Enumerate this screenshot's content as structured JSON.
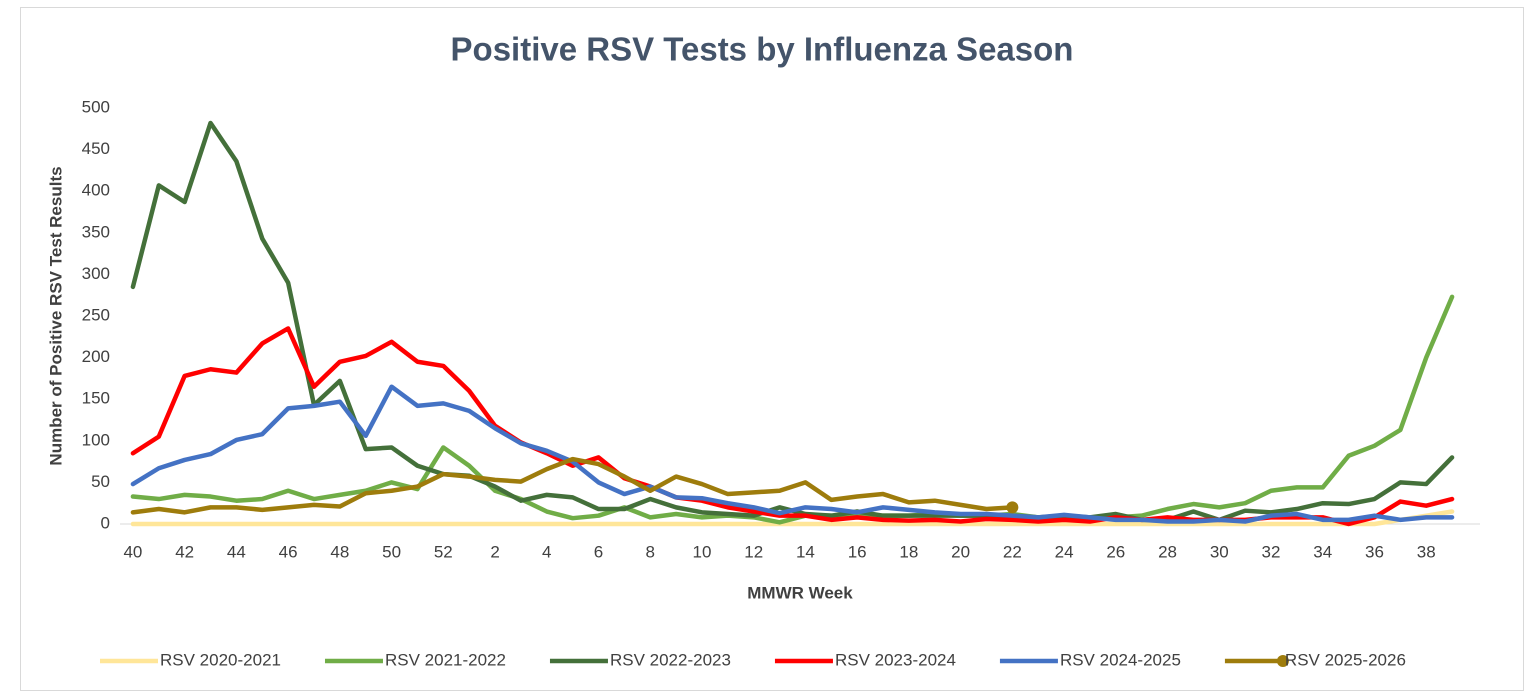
{
  "chart_data": {
    "type": "line",
    "title": "Positive RSV Tests by Influenza Season",
    "x_label": "MMWR Week",
    "y_label": "Number of Positive RSV Test Results",
    "categories": [
      "40",
      null,
      "42",
      null,
      "44",
      null,
      "46",
      null,
      "48",
      null,
      "50",
      null,
      "52",
      null,
      "2",
      null,
      "4",
      null,
      "6",
      null,
      "8",
      null,
      "10",
      null,
      "12",
      null,
      "14",
      null,
      "16",
      null,
      "18",
      null,
      "20",
      null,
      "22",
      null,
      "24",
      null,
      "26",
      null,
      "28",
      null,
      "30",
      null,
      "32",
      null,
      "34",
      null,
      "36",
      null,
      "38",
      null
    ],
    "ylim": [
      0,
      500
    ],
    "yticks": [
      0,
      50,
      100,
      150,
      200,
      250,
      300,
      350,
      400,
      450,
      500
    ],
    "grid": false,
    "legend": "bottom",
    "series": [
      {
        "name": "RSV 2020-2021",
        "color": "#ffe699",
        "values": [
          0,
          0,
          0,
          0,
          0,
          0,
          0,
          0,
          0,
          0,
          0,
          0,
          0,
          0,
          0,
          0,
          0,
          0,
          0,
          0,
          0,
          0,
          0,
          0,
          0,
          0,
          0,
          0,
          0,
          0,
          0,
          0,
          0,
          0,
          0,
          0,
          0,
          0,
          0,
          0,
          0,
          0,
          0,
          0,
          0,
          0,
          0,
          0,
          0,
          5,
          10,
          15
        ]
      },
      {
        "name": "RSV 2021-2022",
        "color": "#70ad47",
        "values": [
          33,
          30,
          35,
          33,
          28,
          30,
          40,
          30,
          35,
          40,
          50,
          42,
          92,
          70,
          40,
          30,
          15,
          7,
          10,
          20,
          8,
          12,
          8,
          10,
          8,
          2,
          10,
          10,
          10,
          10,
          10,
          12,
          10,
          10,
          12,
          8,
          8,
          5,
          8,
          10,
          18,
          24,
          20,
          25,
          40,
          44,
          44,
          82,
          94,
          113,
          200,
          273
        ]
      },
      {
        "name": "RSV 2022-2023",
        "color": "#44703a",
        "values": [
          285,
          407,
          387,
          482,
          436,
          343,
          290,
          143,
          172,
          90,
          92,
          70,
          60,
          58,
          45,
          28,
          35,
          32,
          18,
          18,
          30,
          20,
          14,
          12,
          10,
          20,
          12,
          10,
          15,
          10,
          10,
          10,
          10,
          10,
          10,
          8,
          10,
          8,
          12,
          5,
          5,
          15,
          5,
          16,
          14,
          18,
          25,
          24,
          30,
          50,
          48,
          80
        ]
      },
      {
        "name": "RSV 2023-2024",
        "color": "#ff0000",
        "values": [
          85,
          105,
          178,
          186,
          182,
          217,
          235,
          165,
          195,
          202,
          219,
          195,
          190,
          160,
          118,
          98,
          85,
          70,
          80,
          55,
          45,
          32,
          28,
          20,
          15,
          10,
          10,
          5,
          8,
          5,
          4,
          5,
          3,
          6,
          5,
          3,
          5,
          3,
          8,
          5,
          8,
          5,
          5,
          5,
          8,
          8,
          8,
          0,
          8,
          27,
          22,
          30
        ]
      },
      {
        "name": "RSV 2024-2025",
        "color": "#4472c4",
        "values": [
          48,
          67,
          77,
          84,
          101,
          108,
          139,
          142,
          147,
          106,
          165,
          142,
          145,
          136,
          115,
          97,
          88,
          75,
          50,
          36,
          45,
          32,
          31,
          25,
          20,
          13,
          20,
          18,
          14,
          20,
          17,
          14,
          12,
          12,
          10,
          8,
          11,
          8,
          5,
          5,
          3,
          3,
          5,
          3,
          10,
          12,
          5,
          5,
          10,
          5,
          8,
          8
        ]
      },
      {
        "name": "RSV 2025-2026",
        "color": "#9e7c0c",
        "marker": true,
        "values": [
          14,
          18,
          14,
          20,
          20,
          17,
          20,
          23,
          21,
          37,
          40,
          45,
          60,
          57,
          53,
          51,
          66,
          78,
          72,
          57,
          40,
          57,
          48,
          36,
          38,
          40,
          50,
          29,
          33,
          36,
          26,
          28,
          23,
          18,
          20,
          null,
          null,
          null,
          null,
          null,
          null,
          null,
          null,
          null,
          null,
          null,
          null,
          null,
          null,
          null,
          null,
          null
        ]
      }
    ]
  }
}
